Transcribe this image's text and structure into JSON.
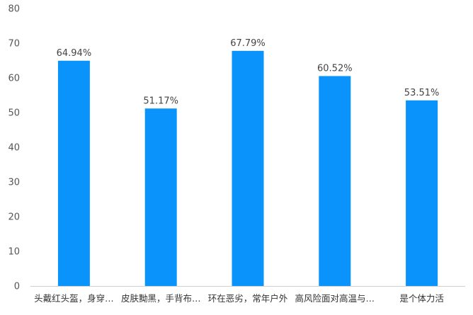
{
  "chart_data": {
    "type": "bar",
    "categories": [
      "头戴红头盔，身穿…",
      "皮肤黝黑，手背布…",
      "环在恶劣，常年户外",
      "高风险面对高温与…",
      "是个体力活"
    ],
    "values": [
      64.94,
      51.17,
      67.79,
      60.52,
      53.51
    ],
    "value_labels": [
      "64.94%",
      "51.17%",
      "67.79%",
      "60.52%",
      "53.51%"
    ],
    "ylim": [
      0,
      80
    ],
    "yticks": [
      0,
      10,
      20,
      30,
      40,
      50,
      60,
      70,
      80
    ],
    "ytick_labels": [
      "0",
      "10",
      "20",
      "30",
      "40",
      "50",
      "60",
      "70",
      "80"
    ],
    "grid": false,
    "bar_color": "#0A94FB",
    "title": "",
    "xlabel": "",
    "ylabel": ""
  }
}
